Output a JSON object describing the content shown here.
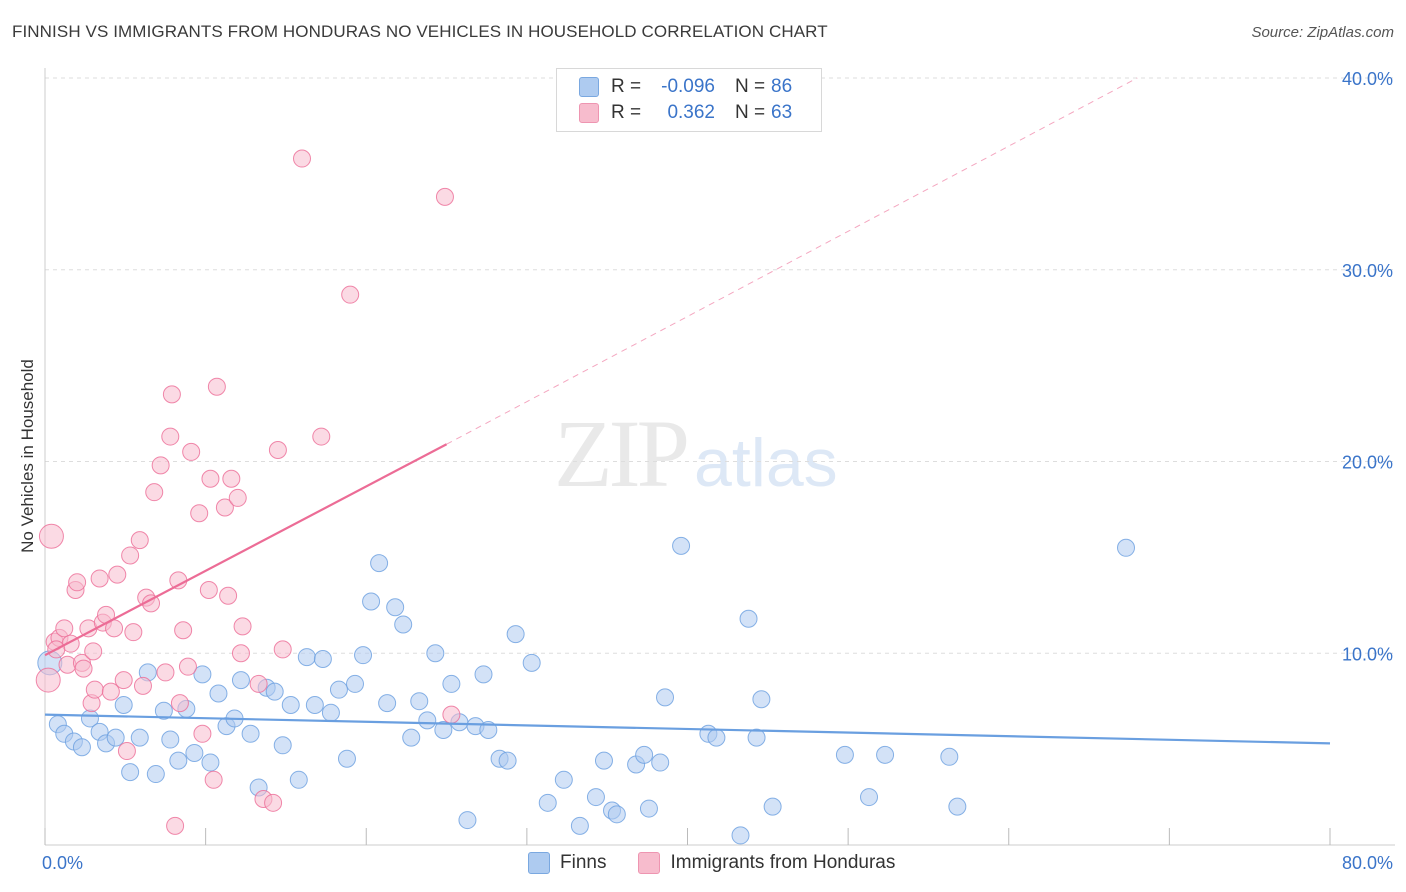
{
  "title": "FINNISH VS IMMIGRANTS FROM HONDURAS NO VEHICLES IN HOUSEHOLD CORRELATION CHART",
  "source": "Source: ZipAtlas.com",
  "watermark": {
    "zip": "ZIP",
    "atlas": "atlas"
  },
  "legend": {
    "rows": [
      {
        "r_label": "R =",
        "r_value": "-0.096",
        "n_label": "N =",
        "n_value": "86",
        "color": "#aecbf0"
      },
      {
        "r_label": "R =",
        "r_value": "0.362",
        "n_label": "N =",
        "n_value": "63",
        "color": "#f7bccd"
      }
    ]
  },
  "bottom_legend": {
    "finns": "Finns",
    "honduras": "Immigrants from Honduras"
  },
  "chart_data": {
    "type": "scatter",
    "title": "FINNISH VS IMMIGRANTS FROM HONDURAS NO VEHICLES IN HOUSEHOLD CORRELATION CHART",
    "xlabel": "",
    "ylabel": "No Vehicles in Household",
    "xlim": [
      0,
      80
    ],
    "ylim": [
      0,
      40
    ],
    "x_tick_labels": [
      "0.0%",
      "80.0%"
    ],
    "y_tick_labels": [
      "10.0%",
      "20.0%",
      "30.0%",
      "40.0%"
    ],
    "y_ticks": [
      10,
      20,
      30,
      40
    ],
    "grid": true,
    "legend_position": "top-center",
    "series": [
      {
        "name": "Finns",
        "color": "#6a9fe0",
        "fill": "#aecbf0",
        "trend": {
          "x0": 0,
          "y0": 6.8,
          "x1": 80,
          "y1": 5.3
        },
        "points": [
          [
            0.3,
            9.5
          ],
          [
            0.8,
            6.3
          ],
          [
            1.2,
            5.8
          ],
          [
            1.8,
            5.4
          ],
          [
            2.3,
            5.1
          ],
          [
            2.8,
            6.6
          ],
          [
            3.4,
            5.9
          ],
          [
            3.8,
            5.3
          ],
          [
            4.4,
            5.6
          ],
          [
            4.9,
            7.3
          ],
          [
            5.3,
            3.8
          ],
          [
            5.9,
            5.6
          ],
          [
            6.4,
            9.0
          ],
          [
            6.9,
            3.7
          ],
          [
            7.4,
            7.0
          ],
          [
            7.8,
            5.5
          ],
          [
            8.3,
            4.4
          ],
          [
            8.8,
            7.1
          ],
          [
            9.3,
            4.8
          ],
          [
            9.8,
            8.9
          ],
          [
            10.3,
            4.3
          ],
          [
            10.8,
            7.9
          ],
          [
            11.3,
            6.2
          ],
          [
            11.8,
            6.6
          ],
          [
            12.2,
            8.6
          ],
          [
            12.8,
            5.8
          ],
          [
            13.3,
            3.0
          ],
          [
            13.8,
            8.2
          ],
          [
            14.3,
            8.0
          ],
          [
            14.8,
            5.2
          ],
          [
            15.3,
            7.3
          ],
          [
            15.8,
            3.4
          ],
          [
            16.3,
            9.8
          ],
          [
            16.8,
            7.3
          ],
          [
            17.3,
            9.7
          ],
          [
            17.8,
            6.9
          ],
          [
            18.3,
            8.1
          ],
          [
            18.8,
            4.5
          ],
          [
            19.3,
            8.4
          ],
          [
            19.8,
            9.9
          ],
          [
            20.3,
            12.7
          ],
          [
            20.8,
            14.7
          ],
          [
            21.3,
            7.4
          ],
          [
            21.8,
            12.4
          ],
          [
            22.3,
            11.5
          ],
          [
            22.8,
            5.6
          ],
          [
            23.3,
            7.5
          ],
          [
            23.8,
            6.5
          ],
          [
            24.3,
            10.0
          ],
          [
            24.8,
            6.0
          ],
          [
            25.3,
            8.4
          ],
          [
            25.8,
            6.4
          ],
          [
            26.3,
            1.3
          ],
          [
            26.8,
            6.2
          ],
          [
            27.3,
            8.9
          ],
          [
            27.6,
            6.0
          ],
          [
            28.3,
            4.5
          ],
          [
            28.8,
            4.4
          ],
          [
            29.3,
            11.0
          ],
          [
            30.3,
            9.5
          ],
          [
            31.3,
            2.2
          ],
          [
            32.3,
            3.4
          ],
          [
            33.3,
            1.0
          ],
          [
            34.3,
            2.5
          ],
          [
            34.8,
            4.4
          ],
          [
            35.3,
            1.8
          ],
          [
            35.6,
            1.6
          ],
          [
            36.8,
            4.2
          ],
          [
            37.3,
            4.7
          ],
          [
            37.6,
            1.9
          ],
          [
            38.3,
            4.3
          ],
          [
            38.6,
            7.7
          ],
          [
            39.6,
            15.6
          ],
          [
            41.3,
            5.8
          ],
          [
            41.8,
            5.6
          ],
          [
            43.3,
            0.5
          ],
          [
            43.8,
            11.8
          ],
          [
            44.3,
            5.6
          ],
          [
            44.6,
            7.6
          ],
          [
            45.3,
            2.0
          ],
          [
            49.8,
            4.7
          ],
          [
            51.3,
            2.5
          ],
          [
            52.3,
            4.7
          ],
          [
            56.3,
            4.6
          ],
          [
            56.8,
            2.0
          ],
          [
            67.3,
            15.5
          ]
        ]
      },
      {
        "name": "Immigrants from Honduras",
        "color": "#ec6c96",
        "fill": "#f7bccd",
        "trend": {
          "x0": 0,
          "y0": 9.9,
          "x1": 25,
          "y1": 20.9
        },
        "trend_extension": {
          "x0": 25,
          "y0": 20.9,
          "x1": 68,
          "y1": 40
        },
        "points": [
          [
            0.2,
            8.6
          ],
          [
            0.4,
            16.1
          ],
          [
            0.6,
            10.6
          ],
          [
            0.9,
            10.8
          ],
          [
            1.2,
            11.3
          ],
          [
            1.4,
            9.4
          ],
          [
            1.6,
            10.5
          ],
          [
            1.9,
            13.3
          ],
          [
            2.0,
            13.7
          ],
          [
            2.3,
            9.5
          ],
          [
            2.4,
            9.2
          ],
          [
            2.7,
            11.3
          ],
          [
            2.9,
            7.4
          ],
          [
            3.0,
            10.1
          ],
          [
            3.1,
            8.1
          ],
          [
            3.4,
            13.9
          ],
          [
            3.6,
            11.6
          ],
          [
            3.8,
            12.0
          ],
          [
            4.1,
            8.0
          ],
          [
            4.3,
            11.3
          ],
          [
            4.5,
            14.1
          ],
          [
            4.9,
            8.6
          ],
          [
            5.1,
            4.9
          ],
          [
            5.3,
            15.1
          ],
          [
            5.5,
            11.1
          ],
          [
            5.9,
            15.9
          ],
          [
            6.1,
            8.3
          ],
          [
            6.3,
            12.9
          ],
          [
            6.6,
            12.6
          ],
          [
            6.8,
            18.4
          ],
          [
            7.2,
            19.8
          ],
          [
            7.5,
            9.0
          ],
          [
            7.8,
            21.3
          ],
          [
            7.9,
            23.5
          ],
          [
            8.1,
            1.0
          ],
          [
            8.3,
            13.8
          ],
          [
            8.4,
            7.4
          ],
          [
            8.6,
            11.2
          ],
          [
            8.9,
            9.3
          ],
          [
            9.1,
            20.5
          ],
          [
            9.6,
            17.3
          ],
          [
            9.8,
            5.8
          ],
          [
            10.2,
            13.3
          ],
          [
            10.3,
            19.1
          ],
          [
            10.5,
            3.4
          ],
          [
            10.7,
            23.9
          ],
          [
            11.2,
            17.6
          ],
          [
            11.4,
            13.0
          ],
          [
            11.6,
            19.1
          ],
          [
            12.0,
            18.1
          ],
          [
            12.2,
            10.0
          ],
          [
            12.3,
            11.4
          ],
          [
            13.3,
            8.4
          ],
          [
            13.6,
            2.4
          ],
          [
            14.2,
            2.2
          ],
          [
            14.5,
            20.6
          ],
          [
            14.8,
            10.2
          ],
          [
            16.0,
            35.8
          ],
          [
            17.2,
            21.3
          ],
          [
            19.0,
            28.7
          ],
          [
            24.9,
            33.8
          ],
          [
            25.3,
            6.8
          ],
          [
            0.7,
            10.2
          ]
        ]
      }
    ]
  }
}
